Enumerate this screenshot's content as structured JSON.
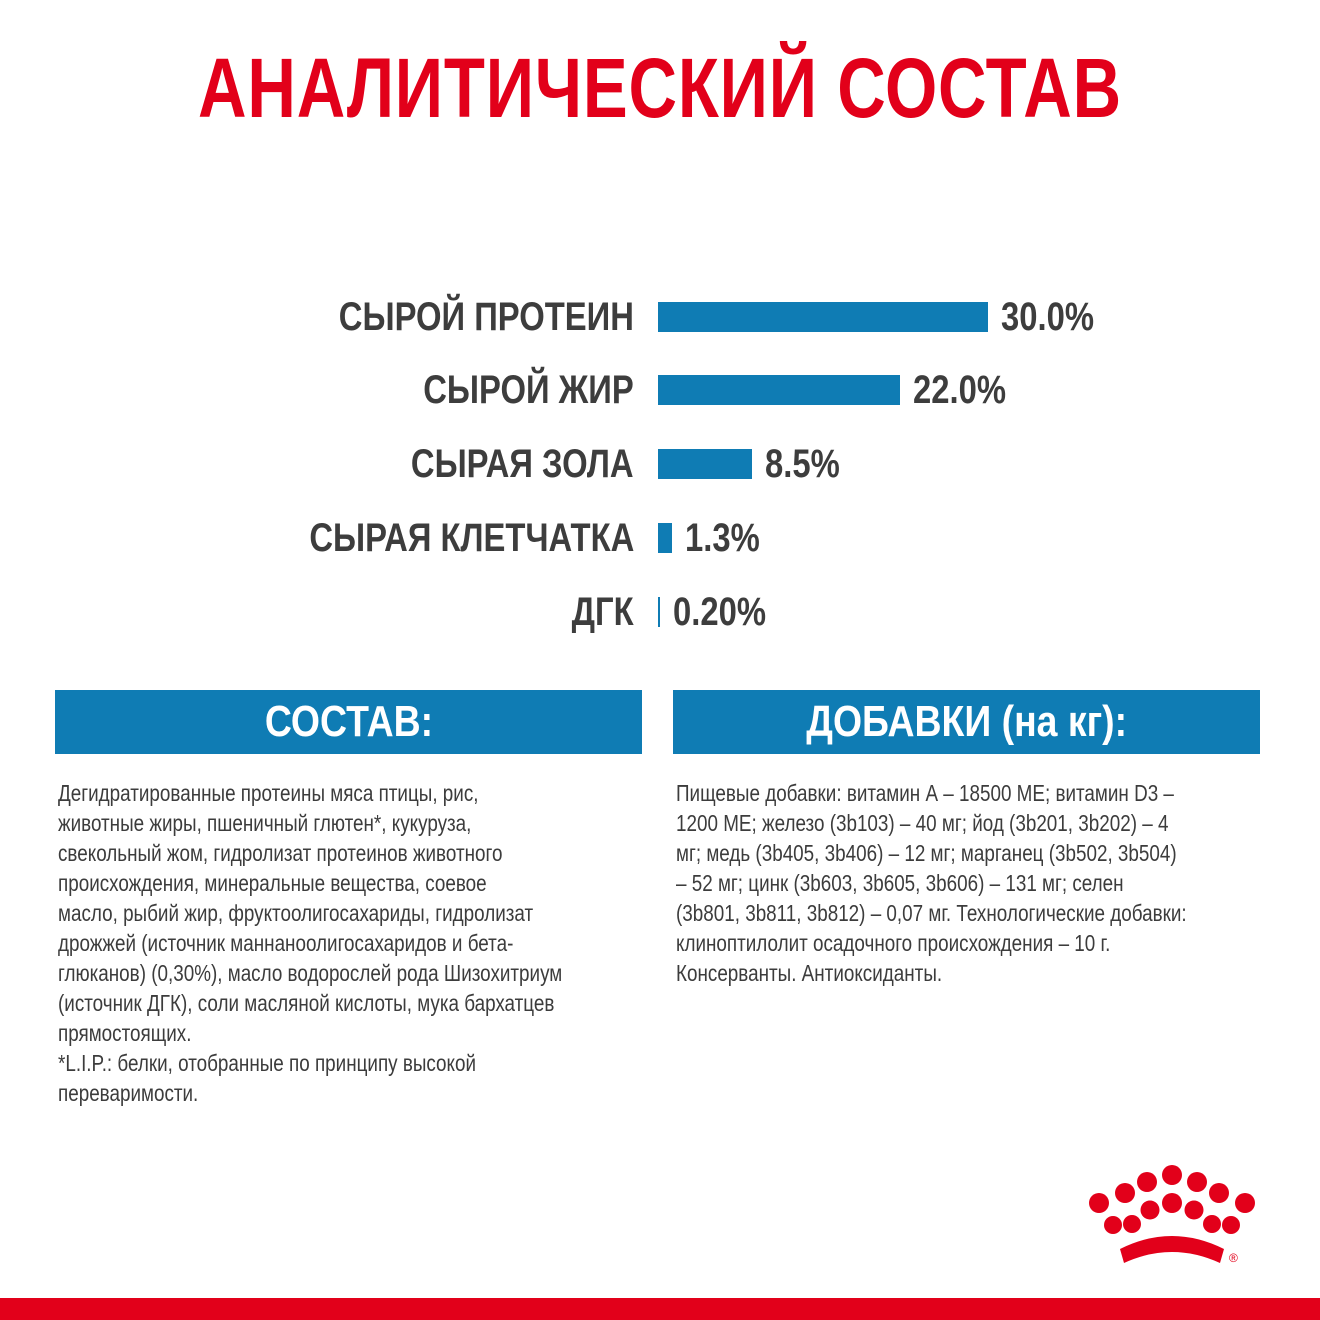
{
  "title": "АНАЛИТИЧЕСКИЙ СОСТАВ",
  "chart_data": {
    "type": "bar",
    "orientation": "horizontal",
    "categories": [
      "СЫРОЙ ПРОТЕИН",
      "СЫРОЙ ЖИР",
      "СЫРАЯ ЗОЛА",
      "СЫРАЯ КЛЕТЧАТКА",
      "ДГК"
    ],
    "values": [
      30.0,
      22.0,
      8.5,
      1.3,
      0.2
    ],
    "value_labels": [
      "30.0%",
      "22.0%",
      "8.5%",
      "1.3%",
      "0.20%"
    ],
    "title": "",
    "xlabel": "",
    "ylabel": "",
    "xlim": [
      0,
      30
    ],
    "grid": false,
    "bar_color": "#0f7cb4"
  },
  "composition": {
    "header": "СОСТАВ:",
    "lines": [
      "Дегидратированные протеины мяса птицы, рис,",
      "животные жиры, пшеничный глютен*, кукуруза,",
      "свекольный жом, гидролизат протеинов животного",
      "происхождения, минеральные вещества, соевое",
      "масло, рыбий жир, фруктоолигосахариды, гидролизат",
      "дрожжей (источник маннаноолигосахаридов и бета-",
      "глюканов) (0,30%), масло водорослей рода Шизохитриум",
      "(источник ДГК), соли масляной кислоты, мука бархатцев",
      "прямостоящих.",
      "*L.I.P.: белки, отобранные по принципу высокой",
      "переваримости."
    ]
  },
  "additives": {
    "header": "ДОБАВКИ (на кг):",
    "lines": [
      "Пищевые добавки: витамин А – 18500 МЕ; витамин D3 –",
      "1200 МЕ; железо (3b103) – 40 мг; йод (3b201, 3b202) – 4",
      "мг; медь (3b405, 3b406) – 12 мг; марганец (3b502, 3b504)",
      "– 52 мг; цинк (3b603, 3b605, 3b606) – 131 мг; селен",
      "(3b801, 3b811, 3b812) – 0,07 мг. Технологические добавки:",
      "клиноптилолит осадочного происхождения – 10 г.",
      "Консерванты. Антиоксиданты."
    ]
  },
  "logo": {
    "icon": "crown-icon",
    "mark": "®"
  },
  "colors": {
    "brand_red": "#e2001a",
    "accent_blue": "#0f7cb4",
    "text": "#3c3c3c"
  }
}
